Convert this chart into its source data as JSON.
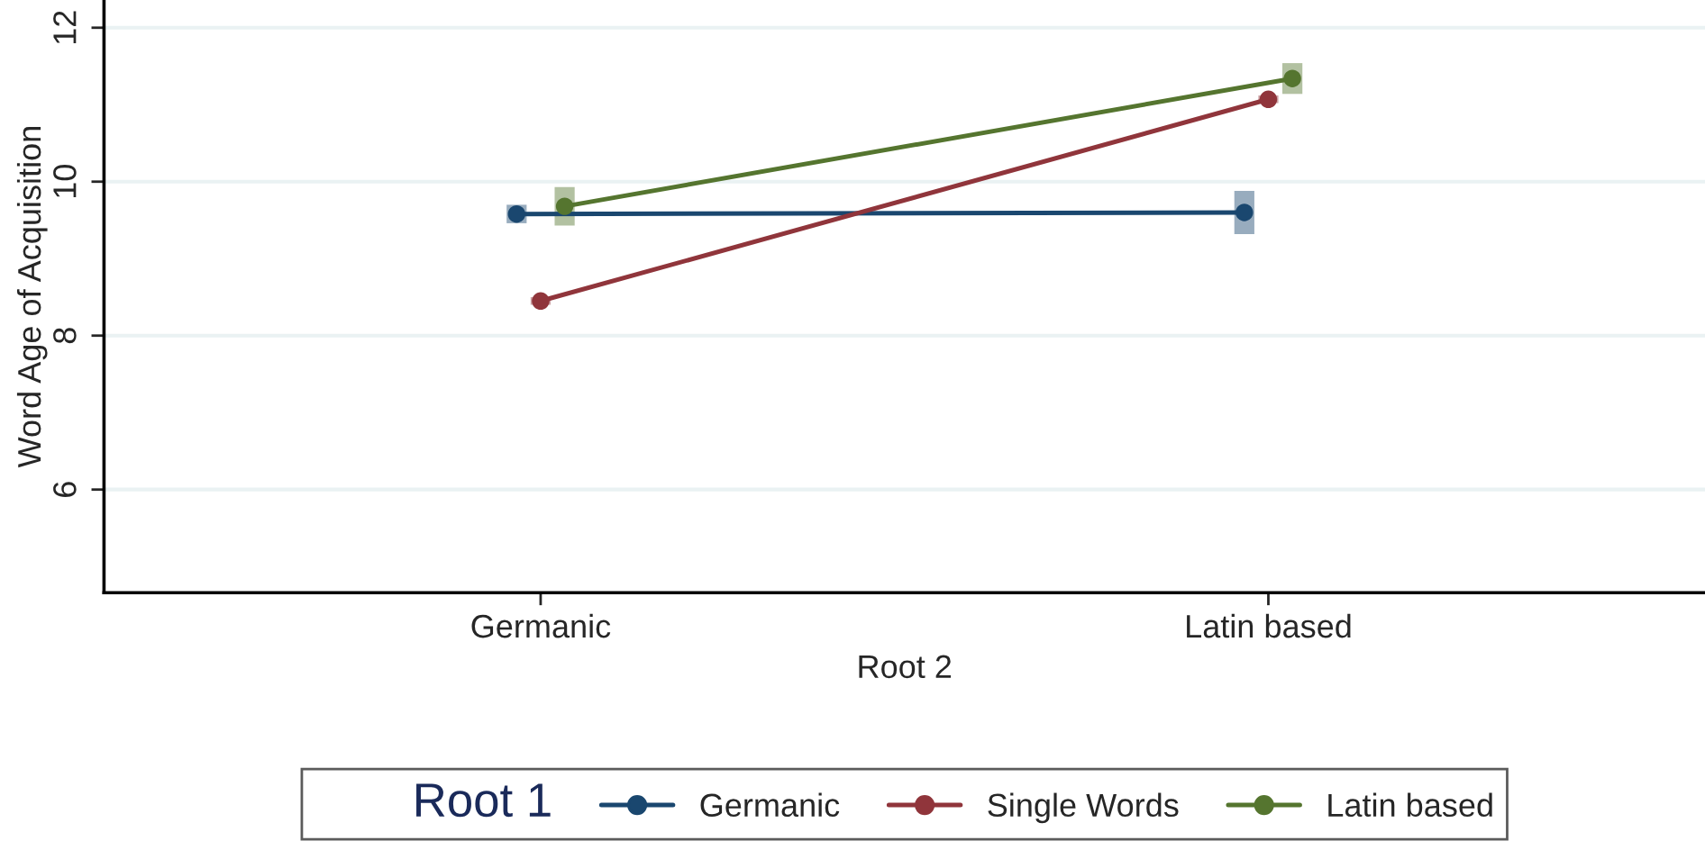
{
  "chart_data": {
    "type": "line",
    "categories": [
      "Germanic",
      "Latin based"
    ],
    "xlabel": "Root 2",
    "ylabel": "Word Age of Acquisition",
    "legend_title": "Root 1",
    "series": [
      {
        "name": "Germanic",
        "color": "#1a476f",
        "values": [
          9.58,
          9.6
        ],
        "errors": [
          0.12,
          0.28
        ]
      },
      {
        "name": "Single Words",
        "color": "#90353b",
        "values": [
          8.45,
          11.07
        ],
        "errors": [
          0.05,
          0.05
        ]
      },
      {
        "name": "Latin based",
        "color": "#55752f",
        "values": [
          9.68,
          11.34
        ],
        "errors": [
          0.25,
          0.2
        ]
      }
    ],
    "ylim": [
      4.66,
      12.36
    ],
    "yticks": [
      6,
      8,
      10,
      12
    ],
    "grid": "y",
    "legend": "bottom",
    "marker": "circle",
    "line_style": "solid"
  }
}
